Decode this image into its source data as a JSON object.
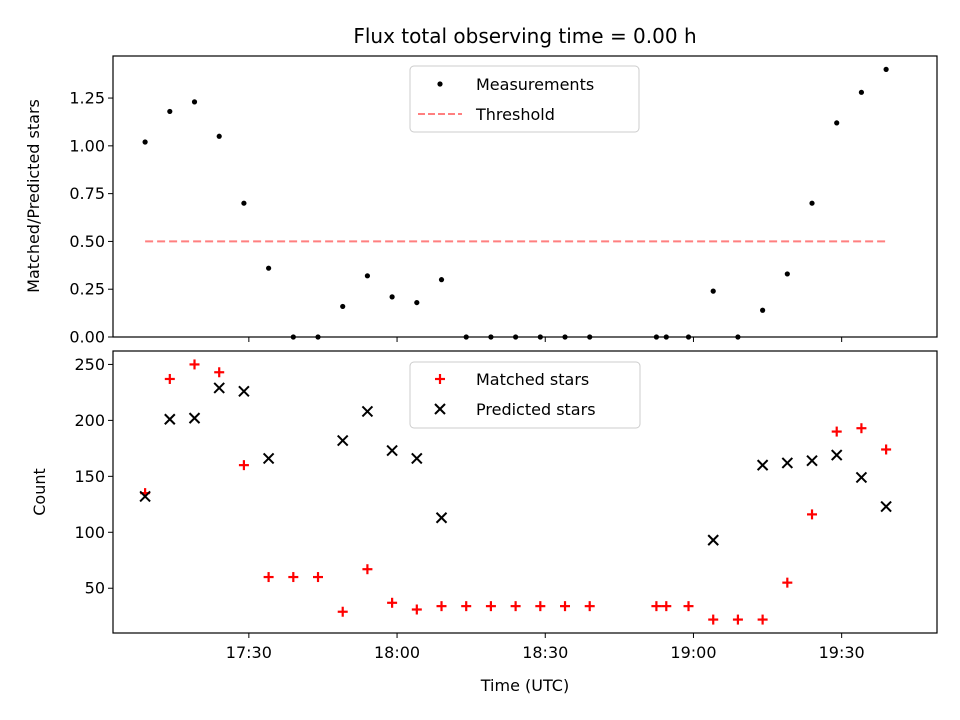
{
  "chart_data": {
    "title": "Flux total observing time = 0.00 h",
    "xlabel": "Time (UTC)",
    "x_ticks": [
      "17:30",
      "18:00",
      "18:30",
      "19:00",
      "19:30"
    ],
    "x_tick_minutes": [
      1050,
      1080,
      1110,
      1140,
      1170
    ],
    "xlim_minutes": [
      1022.5,
      1189.3
    ],
    "panels": [
      {
        "type": "scatter",
        "ylabel": "Matched/Predicted stars",
        "ylim": [
          0,
          1.47
        ],
        "y_ticks": [
          "0.00",
          "0.25",
          "0.50",
          "0.75",
          "1.00",
          "1.25"
        ],
        "y_tick_values": [
          0,
          0.25,
          0.5,
          0.75,
          1.0,
          1.25
        ],
        "legend": {
          "placement": "upper center",
          "entries": [
            "Measurements",
            "Threshold"
          ]
        },
        "series": [
          {
            "name": "Measurements",
            "marker": "dot",
            "color": "#000000",
            "x": [
              1029,
              1034,
              1039,
              1044,
              1049,
              1054,
              1059,
              1064,
              1069,
              1074,
              1079,
              1084,
              1089,
              1094,
              1099,
              1104,
              1109,
              1114,
              1119,
              1132.5,
              1134.5,
              1139,
              1144,
              1149,
              1154,
              1159,
              1164,
              1169,
              1174,
              1179
            ],
            "y": [
              1.02,
              1.18,
              1.23,
              1.05,
              0.7,
              0.36,
              0,
              0,
              0.16,
              0.32,
              0.21,
              0.18,
              0.3,
              0,
              0,
              0,
              0,
              0,
              0,
              0,
              0,
              0,
              0.24,
              0,
              0.14,
              0.33,
              0.7,
              1.12,
              1.28,
              1.4
            ]
          },
          {
            "name": "Threshold",
            "marker": "dashed-line",
            "color": "#ff7f7f",
            "x": [
              1029,
              1179
            ],
            "y": [
              0.5,
              0.5
            ]
          }
        ]
      },
      {
        "type": "scatter",
        "ylabel": "Count",
        "ylim": [
          10,
          262
        ],
        "y_ticks": [
          "50",
          "100",
          "150",
          "200",
          "250"
        ],
        "y_tick_values": [
          50,
          100,
          150,
          200,
          250
        ],
        "legend": {
          "placement": "upper center",
          "entries": [
            "Matched stars",
            "Predicted stars"
          ]
        },
        "series": [
          {
            "name": "Matched stars",
            "marker": "plus",
            "color": "#ff0000",
            "x": [
              1029,
              1034,
              1039,
              1044,
              1049,
              1054,
              1059,
              1064,
              1069,
              1074,
              1079,
              1084,
              1089,
              1094,
              1099,
              1104,
              1109,
              1114,
              1119,
              1132.5,
              1134.5,
              1139,
              1144,
              1149,
              1154,
              1159,
              1164,
              1169,
              1174,
              1179
            ],
            "y": [
              135,
              237,
              250,
              243,
              160,
              60,
              60,
              60,
              29,
              67,
              37,
              31,
              34,
              34,
              34,
              34,
              34,
              34,
              34,
              34,
              34,
              34,
              22,
              22,
              22,
              55,
              116,
              190,
              193,
              174
            ]
          },
          {
            "name": "Predicted stars",
            "marker": "x",
            "color": "#000000",
            "x": [
              1029,
              1034,
              1039,
              1044,
              1049,
              1054,
              1069,
              1074,
              1079,
              1084,
              1089,
              1144,
              1154,
              1159,
              1164,
              1169,
              1174,
              1179
            ],
            "y": [
              132,
              201,
              202,
              229,
              226,
              166,
              182,
              208,
              173,
              166,
              113,
              93,
              160,
              162,
              164,
              169,
              149,
              123
            ]
          }
        ]
      }
    ]
  }
}
